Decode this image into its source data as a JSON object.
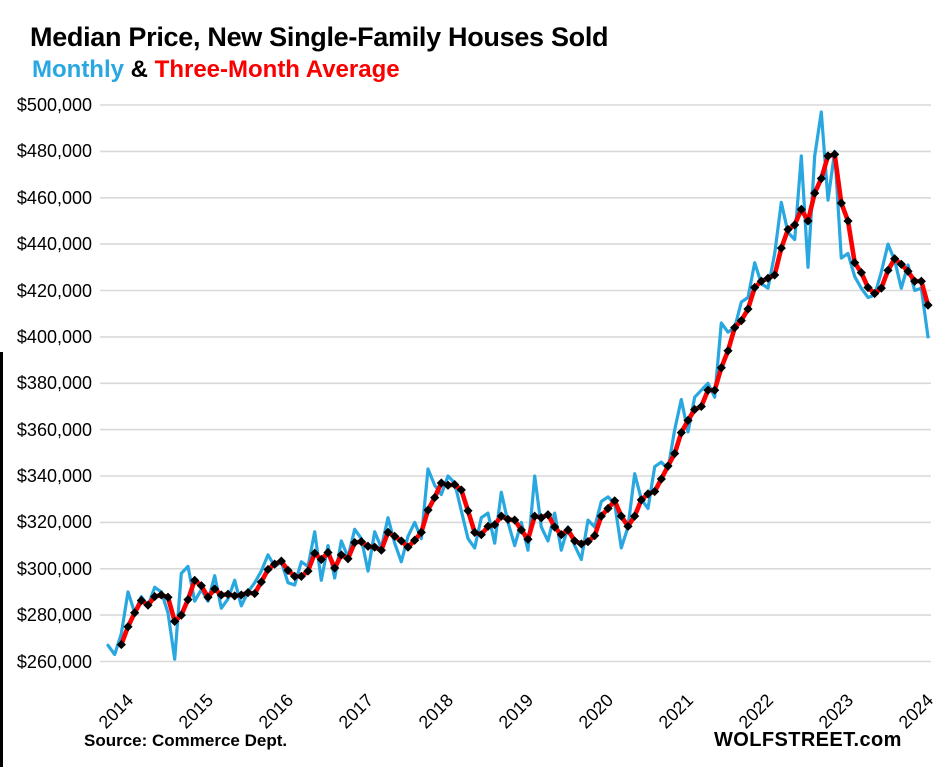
{
  "page": {
    "title": "Median Price, New Single-Family Houses Sold",
    "subtitle": {
      "series1": "Monthly",
      "separator": " & ",
      "series2": "Three-Month Average"
    },
    "source_note": "Source: Commerce Dept.",
    "watermark": "WOLFSTREET.com"
  },
  "colors": {
    "monthly_line": "#29A7E1",
    "average_line": "#FB0000",
    "marker": "#000000",
    "gridline": "#D9D9D9",
    "text": "#000000",
    "background": "#FFFFFF"
  },
  "chart_data": {
    "type": "line",
    "title": "Median Price, New Single-Family Houses Sold",
    "subtitle": "Monthly & Three-Month Average",
    "xlabel": "",
    "ylabel": "",
    "unit": "USD thousands",
    "grid": "horizontal",
    "legend_position": "in-subtitle",
    "ylim": [
      260,
      500
    ],
    "y_tick_values": [
      500,
      480,
      460,
      440,
      420,
      400,
      380,
      360,
      340,
      320,
      300,
      280,
      260
    ],
    "y_tick_labels": [
      "$500,000",
      "$480,000",
      "$460,000",
      "$440,000",
      "$420,000",
      "$400,000",
      "$380,000",
      "$360,000",
      "$340,000",
      "$320,000",
      "$300,000",
      "$280,000",
      "$260,000"
    ],
    "x_tick_labels": [
      "2014",
      "2015",
      "2016",
      "2017",
      "2018",
      "2019",
      "2020",
      "2021",
      "2022",
      "2023",
      "2024"
    ],
    "x_range": {
      "start_month": "2013-11",
      "end_month": "2024-02",
      "points_per_year": 12
    },
    "series": [
      {
        "name": "Monthly",
        "color": "#29A7E1",
        "marker": "none",
        "start_index": 0,
        "values": [
          267,
          263,
          272,
          290,
          281,
          288,
          284,
          292,
          290,
          281,
          261,
          298,
          301,
          286,
          291,
          286,
          297,
          283,
          287,
          295,
          284,
          290,
          294,
          299,
          306,
          301,
          303,
          294,
          293,
          303,
          301,
          316,
          295,
          310,
          296,
          312,
          305,
          317,
          313,
          299,
          316,
          309,
          322,
          311,
          303,
          314,
          320,
          313,
          343,
          336,
          332,
          340,
          337,
          325,
          313,
          309,
          322,
          324,
          311,
          333,
          320,
          310,
          320,
          308,
          340,
          318,
          312,
          324,
          308,
          318,
          310,
          304,
          321,
          318,
          329,
          331,
          328,
          309,
          318,
          341,
          330,
          326,
          344,
          346,
          343,
          360,
          373,
          359,
          374,
          377,
          380,
          374,
          406,
          402,
          404,
          415,
          417,
          432,
          423,
          421,
          436,
          458,
          445,
          442,
          478,
          430,
          478,
          497,
          459,
          480,
          434,
          436,
          426,
          421,
          417,
          418,
          428,
          440,
          433,
          421,
          431,
          420,
          421,
          400
        ]
      },
      {
        "name": "Three-Month Average",
        "color": "#FB0000",
        "marker": "black-diamond",
        "start_index": 2,
        "values": [
          267.3,
          275.0,
          281.0,
          286.3,
          284.3,
          288.0,
          288.7,
          287.7,
          277.3,
          280.0,
          286.7,
          295.0,
          292.7,
          287.7,
          291.3,
          288.7,
          289.0,
          288.3,
          288.7,
          289.7,
          289.3,
          294.3,
          299.7,
          302.0,
          303.3,
          299.3,
          296.7,
          296.7,
          299.0,
          306.7,
          304.0,
          307.0,
          300.3,
          306.0,
          304.3,
          311.3,
          311.7,
          309.7,
          309.3,
          308.0,
          315.7,
          314.0,
          312.0,
          309.3,
          312.3,
          315.7,
          325.3,
          330.7,
          337.0,
          336.0,
          336.3,
          334.0,
          325.0,
          315.7,
          314.7,
          318.3,
          319.0,
          322.7,
          321.3,
          321.0,
          316.7,
          312.7,
          322.7,
          322.0,
          323.3,
          318.0,
          314.7,
          316.7,
          312.0,
          310.7,
          311.7,
          314.3,
          322.7,
          326.0,
          329.3,
          322.7,
          318.3,
          322.7,
          329.7,
          332.3,
          333.3,
          338.7,
          344.3,
          349.7,
          358.7,
          364.0,
          368.7,
          370.0,
          377.0,
          377.0,
          386.7,
          394.0,
          404.0,
          407.0,
          412.0,
          421.3,
          424.0,
          425.3,
          426.7,
          438.3,
          446.3,
          448.3,
          455.0,
          450.0,
          462.0,
          468.3,
          478.0,
          478.7,
          457.7,
          450.0,
          432.0,
          427.7,
          421.3,
          418.7,
          421.0,
          428.7,
          433.7,
          431.3,
          428.3,
          424.0,
          424.0,
          413.7
        ]
      }
    ]
  }
}
